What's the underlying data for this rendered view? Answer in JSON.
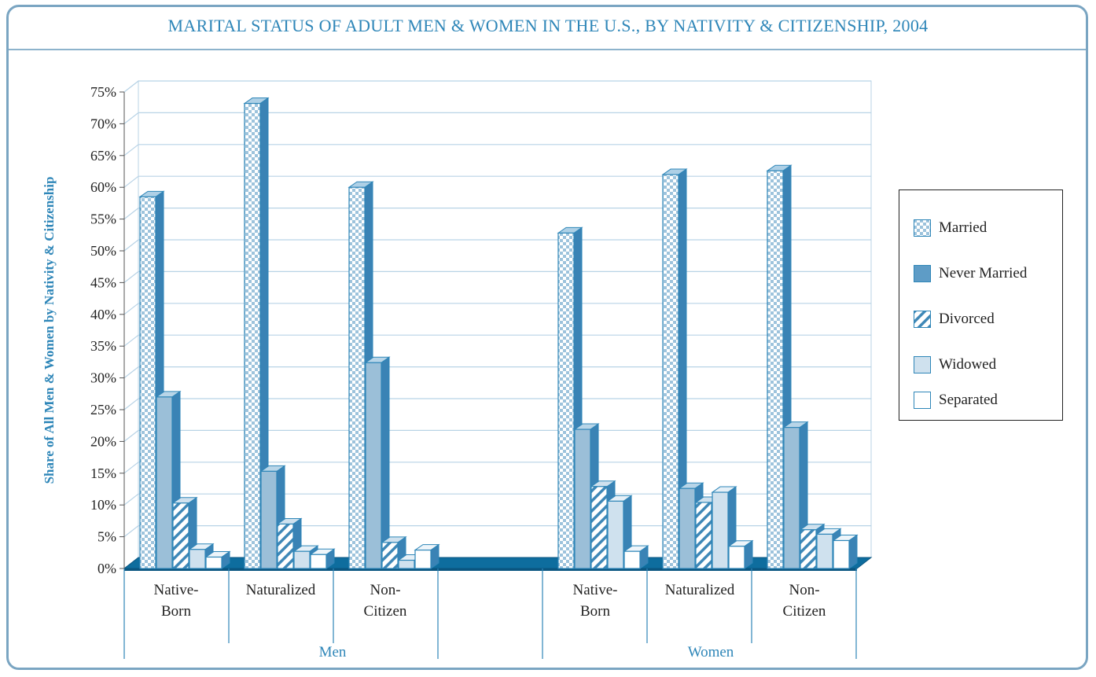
{
  "title": "MARITAL STATUS OF ADULT MEN & WOMEN IN THE U.S., BY NATIVITY & CITIZENSHIP, 2004",
  "colors": {
    "accent": "#2e86b8",
    "frame": "#7aa5c2",
    "grid": "#b8d3e6",
    "floor": "#0e6d9e",
    "never_married": "#9bbfd8",
    "widowed": "#cfe1ee"
  },
  "chart_data": {
    "type": "bar",
    "style": "3d-clustered",
    "title": "MARITAL STATUS OF ADULT MEN & WOMEN IN THE U.S., BY NATIVITY & CITIZENSHIP, 2004",
    "ylabel": "Share of All Men & Women by Nativity & Citizenship",
    "ylim": [
      0,
      75
    ],
    "yticks": [
      "0%",
      "5%",
      "10%",
      "15%",
      "20%",
      "25%",
      "30%",
      "35%",
      "40%",
      "45%",
      "50%",
      "55%",
      "60%",
      "65%",
      "70%",
      "75%"
    ],
    "grid": true,
    "legend_position": "right",
    "groups": [
      {
        "name": "Men",
        "categories": [
          "Native-Born",
          "Naturalized",
          "Non-Citizen"
        ]
      },
      {
        "name": "Women",
        "categories": [
          "Native-Born",
          "Naturalized",
          "Non-Citizen"
        ]
      }
    ],
    "series": [
      {
        "name": "Married",
        "pattern": "checker",
        "values": [
          58.5,
          73.2,
          60.0,
          52.8,
          62.0,
          62.6
        ]
      },
      {
        "name": "Never Married",
        "pattern": "solid-medium",
        "values": [
          27.0,
          15.3,
          32.4,
          21.9,
          12.6,
          22.2
        ]
      },
      {
        "name": "Divorced",
        "pattern": "diagonal-hatch",
        "values": [
          10.3,
          7.0,
          4.1,
          12.9,
          10.4,
          6.1
        ]
      },
      {
        "name": "Widowed",
        "pattern": "solid-light",
        "values": [
          3.0,
          2.7,
          1.3,
          10.6,
          12.0,
          5.4
        ]
      },
      {
        "name": "Separated",
        "pattern": "white",
        "values": [
          1.8,
          2.2,
          2.9,
          2.7,
          3.5,
          4.4
        ]
      }
    ]
  }
}
